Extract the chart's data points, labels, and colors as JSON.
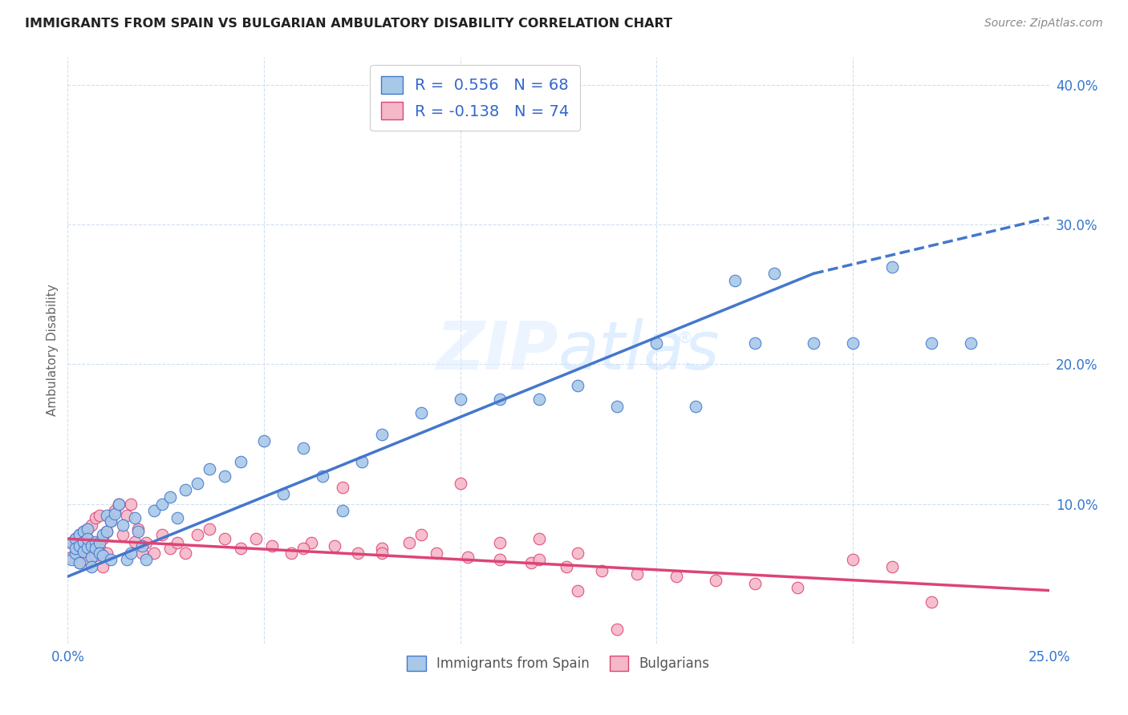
{
  "title": "IMMIGRANTS FROM SPAIN VS BULGARIAN AMBULATORY DISABILITY CORRELATION CHART",
  "source": "Source: ZipAtlas.com",
  "ylabel": "Ambulatory Disability",
  "x_min": 0.0,
  "x_max": 0.25,
  "y_min": 0.0,
  "y_max": 0.42,
  "x_ticks": [
    0.0,
    0.05,
    0.1,
    0.15,
    0.2,
    0.25
  ],
  "x_tick_labels": [
    "0.0%",
    "",
    "",
    "",
    "",
    "25.0%"
  ],
  "y_ticks": [
    0.0,
    0.1,
    0.2,
    0.3,
    0.4
  ],
  "y_tick_labels": [
    "",
    "10.0%",
    "20.0%",
    "30.0%",
    "40.0%"
  ],
  "blue_color": "#a8c8e8",
  "pink_color": "#f4b8c8",
  "blue_line_color": "#4477cc",
  "pink_line_color": "#dd4477",
  "blue_R": 0.556,
  "blue_N": 68,
  "pink_R": -0.138,
  "pink_N": 74,
  "legend_label_blue": "Immigrants from Spain",
  "legend_label_pink": "Bulgarians",
  "blue_trend_x0": 0.0,
  "blue_trend_y0": 0.048,
  "blue_trend_x1": 0.19,
  "blue_trend_y1": 0.265,
  "blue_trend_x2": 0.25,
  "blue_trend_y2": 0.305,
  "pink_trend_x0": 0.0,
  "pink_trend_y0": 0.075,
  "pink_trend_x1": 0.25,
  "pink_trend_y1": 0.038,
  "blue_scatter_x": [
    0.001,
    0.001,
    0.002,
    0.002,
    0.002,
    0.003,
    0.003,
    0.003,
    0.004,
    0.004,
    0.004,
    0.005,
    0.005,
    0.005,
    0.006,
    0.006,
    0.006,
    0.007,
    0.007,
    0.008,
    0.008,
    0.009,
    0.009,
    0.01,
    0.01,
    0.011,
    0.011,
    0.012,
    0.013,
    0.014,
    0.015,
    0.016,
    0.017,
    0.018,
    0.019,
    0.02,
    0.022,
    0.024,
    0.026,
    0.028,
    0.03,
    0.033,
    0.036,
    0.04,
    0.044,
    0.05,
    0.055,
    0.06,
    0.065,
    0.07,
    0.075,
    0.08,
    0.09,
    0.1,
    0.11,
    0.12,
    0.13,
    0.14,
    0.15,
    0.16,
    0.17,
    0.175,
    0.18,
    0.19,
    0.2,
    0.21,
    0.22,
    0.23
  ],
  "blue_scatter_y": [
    0.06,
    0.072,
    0.065,
    0.075,
    0.068,
    0.07,
    0.078,
    0.058,
    0.08,
    0.073,
    0.066,
    0.082,
    0.069,
    0.075,
    0.062,
    0.07,
    0.055,
    0.073,
    0.068,
    0.072,
    0.065,
    0.078,
    0.063,
    0.08,
    0.092,
    0.088,
    0.06,
    0.093,
    0.1,
    0.085,
    0.06,
    0.065,
    0.09,
    0.08,
    0.07,
    0.06,
    0.095,
    0.1,
    0.105,
    0.09,
    0.11,
    0.115,
    0.125,
    0.12,
    0.13,
    0.145,
    0.107,
    0.14,
    0.12,
    0.095,
    0.13,
    0.15,
    0.165,
    0.175,
    0.175,
    0.175,
    0.185,
    0.17,
    0.215,
    0.17,
    0.26,
    0.215,
    0.265,
    0.215,
    0.215,
    0.27,
    0.215,
    0.215
  ],
  "pink_scatter_x": [
    0.001,
    0.001,
    0.002,
    0.002,
    0.003,
    0.003,
    0.003,
    0.004,
    0.004,
    0.005,
    0.005,
    0.005,
    0.006,
    0.006,
    0.007,
    0.007,
    0.008,
    0.008,
    0.009,
    0.009,
    0.01,
    0.01,
    0.011,
    0.012,
    0.013,
    0.014,
    0.015,
    0.016,
    0.017,
    0.018,
    0.019,
    0.02,
    0.022,
    0.024,
    0.026,
    0.028,
    0.03,
    0.033,
    0.036,
    0.04,
    0.044,
    0.048,
    0.052,
    0.057,
    0.062,
    0.068,
    0.074,
    0.08,
    0.087,
    0.094,
    0.102,
    0.11,
    0.118,
    0.127,
    0.136,
    0.145,
    0.155,
    0.165,
    0.175,
    0.186,
    0.06,
    0.07,
    0.08,
    0.09,
    0.1,
    0.11,
    0.12,
    0.13,
    0.2,
    0.21,
    0.12,
    0.13,
    0.14,
    0.22
  ],
  "pink_scatter_y": [
    0.062,
    0.072,
    0.075,
    0.07,
    0.065,
    0.078,
    0.058,
    0.08,
    0.068,
    0.075,
    0.06,
    0.082,
    0.072,
    0.085,
    0.09,
    0.063,
    0.092,
    0.068,
    0.075,
    0.055,
    0.08,
    0.065,
    0.088,
    0.095,
    0.1,
    0.078,
    0.092,
    0.1,
    0.073,
    0.082,
    0.065,
    0.072,
    0.065,
    0.078,
    0.068,
    0.072,
    0.065,
    0.078,
    0.082,
    0.075,
    0.068,
    0.075,
    0.07,
    0.065,
    0.072,
    0.07,
    0.065,
    0.068,
    0.072,
    0.065,
    0.062,
    0.06,
    0.058,
    0.055,
    0.052,
    0.05,
    0.048,
    0.045,
    0.043,
    0.04,
    0.068,
    0.112,
    0.065,
    0.078,
    0.115,
    0.072,
    0.075,
    0.065,
    0.06,
    0.055,
    0.06,
    0.038,
    0.01,
    0.03
  ]
}
